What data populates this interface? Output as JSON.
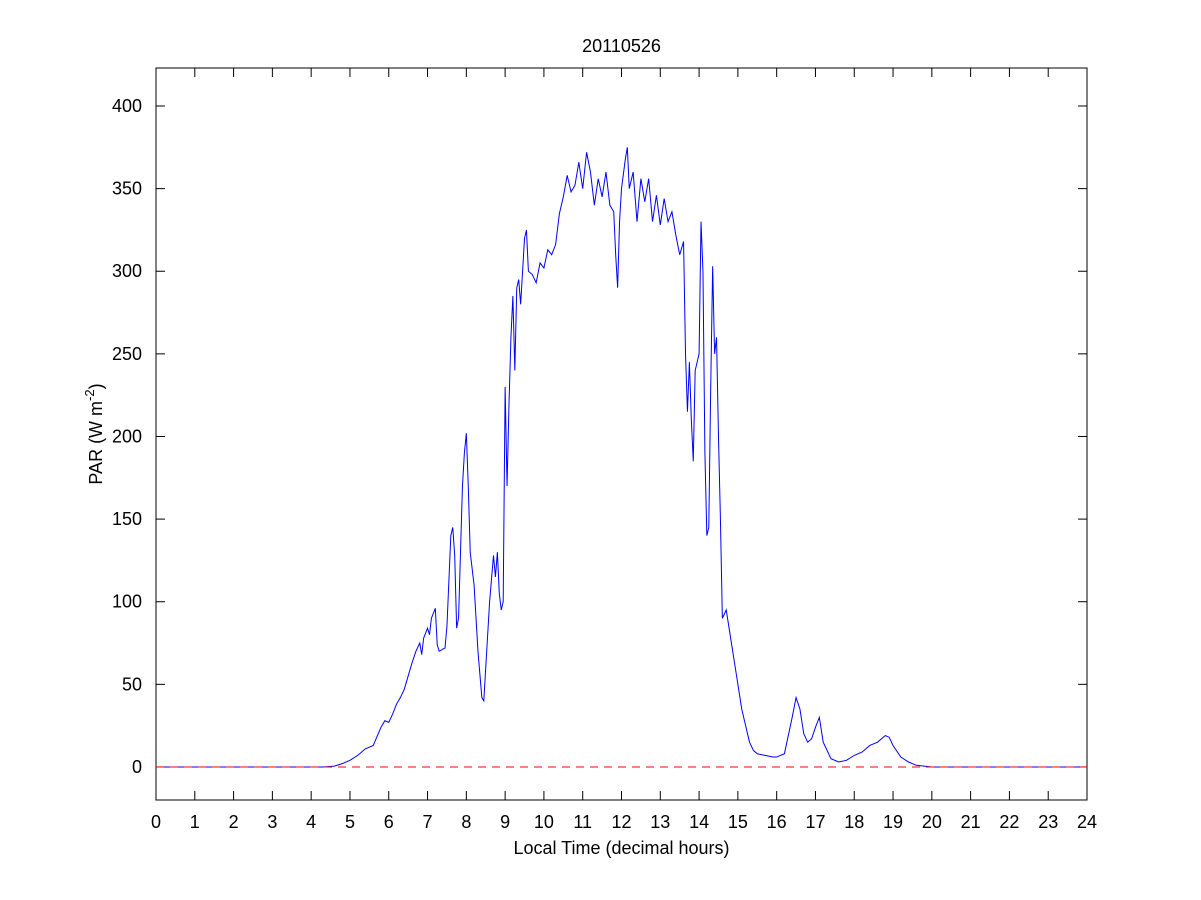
{
  "chart_data": {
    "type": "line",
    "title": "20110526",
    "xlabel": "Local Time (decimal hours)",
    "ylabel": "PAR (W m",
    "ylabel_superscript": "-2",
    "ylabel_suffix": ")",
    "xlim": [
      0,
      24
    ],
    "ylim": [
      -20,
      423
    ],
    "xticks": [
      0,
      1,
      2,
      3,
      4,
      5,
      6,
      7,
      8,
      9,
      10,
      11,
      12,
      13,
      14,
      15,
      16,
      17,
      18,
      19,
      20,
      21,
      22,
      23,
      24
    ],
    "yticks": [
      0,
      50,
      100,
      150,
      200,
      250,
      300,
      350,
      400
    ],
    "grid": false,
    "legend": "none",
    "series": [
      {
        "color": "#0000ff",
        "style": "solid",
        "points": [
          [
            0,
            0
          ],
          [
            4.3,
            0
          ],
          [
            4.6,
            0.5
          ],
          [
            4.8,
            2
          ],
          [
            5.0,
            4
          ],
          [
            5.2,
            7
          ],
          [
            5.4,
            11
          ],
          [
            5.6,
            13
          ],
          [
            5.8,
            24
          ],
          [
            5.9,
            28
          ],
          [
            6.0,
            27
          ],
          [
            6.1,
            32
          ],
          [
            6.2,
            38
          ],
          [
            6.3,
            42
          ],
          [
            6.4,
            47
          ],
          [
            6.5,
            55
          ],
          [
            6.6,
            63
          ],
          [
            6.7,
            70
          ],
          [
            6.8,
            75
          ],
          [
            6.85,
            68
          ],
          [
            6.9,
            78
          ],
          [
            7.0,
            84
          ],
          [
            7.05,
            80
          ],
          [
            7.1,
            90
          ],
          [
            7.2,
            96
          ],
          [
            7.25,
            74
          ],
          [
            7.3,
            70
          ],
          [
            7.45,
            72
          ],
          [
            7.5,
            85
          ],
          [
            7.6,
            140
          ],
          [
            7.65,
            145
          ],
          [
            7.7,
            128
          ],
          [
            7.75,
            84
          ],
          [
            7.8,
            90
          ],
          [
            7.9,
            170
          ],
          [
            7.95,
            190
          ],
          [
            8.0,
            202
          ],
          [
            8.05,
            170
          ],
          [
            8.1,
            130
          ],
          [
            8.2,
            110
          ],
          [
            8.3,
            70
          ],
          [
            8.4,
            42
          ],
          [
            8.45,
            40
          ],
          [
            8.5,
            60
          ],
          [
            8.6,
            100
          ],
          [
            8.7,
            128
          ],
          [
            8.75,
            115
          ],
          [
            8.8,
            130
          ],
          [
            8.85,
            105
          ],
          [
            8.9,
            95
          ],
          [
            8.95,
            100
          ],
          [
            9.0,
            230
          ],
          [
            9.05,
            170
          ],
          [
            9.1,
            220
          ],
          [
            9.15,
            260
          ],
          [
            9.2,
            285
          ],
          [
            9.25,
            240
          ],
          [
            9.3,
            290
          ],
          [
            9.35,
            295
          ],
          [
            9.4,
            280
          ],
          [
            9.5,
            320
          ],
          [
            9.55,
            325
          ],
          [
            9.6,
            300
          ],
          [
            9.7,
            298
          ],
          [
            9.8,
            293
          ],
          [
            9.9,
            305
          ],
          [
            10.0,
            302
          ],
          [
            10.1,
            313
          ],
          [
            10.2,
            310
          ],
          [
            10.3,
            316
          ],
          [
            10.4,
            335
          ],
          [
            10.5,
            345
          ],
          [
            10.6,
            358
          ],
          [
            10.7,
            348
          ],
          [
            10.8,
            352
          ],
          [
            10.9,
            366
          ],
          [
            11.0,
            350
          ],
          [
            11.1,
            372
          ],
          [
            11.2,
            360
          ],
          [
            11.3,
            340
          ],
          [
            11.4,
            356
          ],
          [
            11.5,
            345
          ],
          [
            11.6,
            360
          ],
          [
            11.7,
            340
          ],
          [
            11.8,
            336
          ],
          [
            11.85,
            310
          ],
          [
            11.9,
            290
          ],
          [
            11.95,
            330
          ],
          [
            12.0,
            350
          ],
          [
            12.1,
            368
          ],
          [
            12.15,
            375
          ],
          [
            12.2,
            350
          ],
          [
            12.3,
            360
          ],
          [
            12.4,
            330
          ],
          [
            12.5,
            356
          ],
          [
            12.6,
            342
          ],
          [
            12.7,
            356
          ],
          [
            12.8,
            330
          ],
          [
            12.9,
            346
          ],
          [
            13.0,
            328
          ],
          [
            13.1,
            344
          ],
          [
            13.2,
            330
          ],
          [
            13.3,
            336
          ],
          [
            13.4,
            322
          ],
          [
            13.5,
            310
          ],
          [
            13.6,
            318
          ],
          [
            13.65,
            250
          ],
          [
            13.7,
            215
          ],
          [
            13.75,
            245
          ],
          [
            13.8,
            210
          ],
          [
            13.85,
            185
          ],
          [
            13.9,
            240
          ],
          [
            14.0,
            250
          ],
          [
            14.05,
            330
          ],
          [
            14.1,
            300
          ],
          [
            14.15,
            190
          ],
          [
            14.2,
            140
          ],
          [
            14.25,
            145
          ],
          [
            14.3,
            230
          ],
          [
            14.35,
            303
          ],
          [
            14.4,
            250
          ],
          [
            14.45,
            260
          ],
          [
            14.5,
            200
          ],
          [
            14.55,
            150
          ],
          [
            14.6,
            90
          ],
          [
            14.7,
            95
          ],
          [
            14.8,
            80
          ],
          [
            14.9,
            65
          ],
          [
            15.0,
            50
          ],
          [
            15.1,
            35
          ],
          [
            15.2,
            25
          ],
          [
            15.3,
            15
          ],
          [
            15.4,
            10
          ],
          [
            15.5,
            8
          ],
          [
            15.7,
            7
          ],
          [
            15.9,
            6
          ],
          [
            16.0,
            6
          ],
          [
            16.2,
            8
          ],
          [
            16.4,
            30
          ],
          [
            16.5,
            42
          ],
          [
            16.6,
            35
          ],
          [
            16.7,
            20
          ],
          [
            16.8,
            15
          ],
          [
            16.9,
            17
          ],
          [
            17.0,
            24
          ],
          [
            17.1,
            30
          ],
          [
            17.2,
            15
          ],
          [
            17.4,
            5
          ],
          [
            17.6,
            3
          ],
          [
            17.8,
            4
          ],
          [
            18.0,
            7
          ],
          [
            18.2,
            9
          ],
          [
            18.4,
            13
          ],
          [
            18.6,
            15
          ],
          [
            18.7,
            17
          ],
          [
            18.8,
            19
          ],
          [
            18.9,
            18
          ],
          [
            19.0,
            13
          ],
          [
            19.2,
            6
          ],
          [
            19.4,
            3
          ],
          [
            19.6,
            1
          ],
          [
            19.8,
            0.5
          ],
          [
            20.0,
            0
          ],
          [
            24,
            0
          ]
        ]
      },
      {
        "color": "#ff0000",
        "style": "dashed",
        "points": [
          [
            0,
            0
          ],
          [
            24,
            0
          ]
        ]
      }
    ]
  }
}
